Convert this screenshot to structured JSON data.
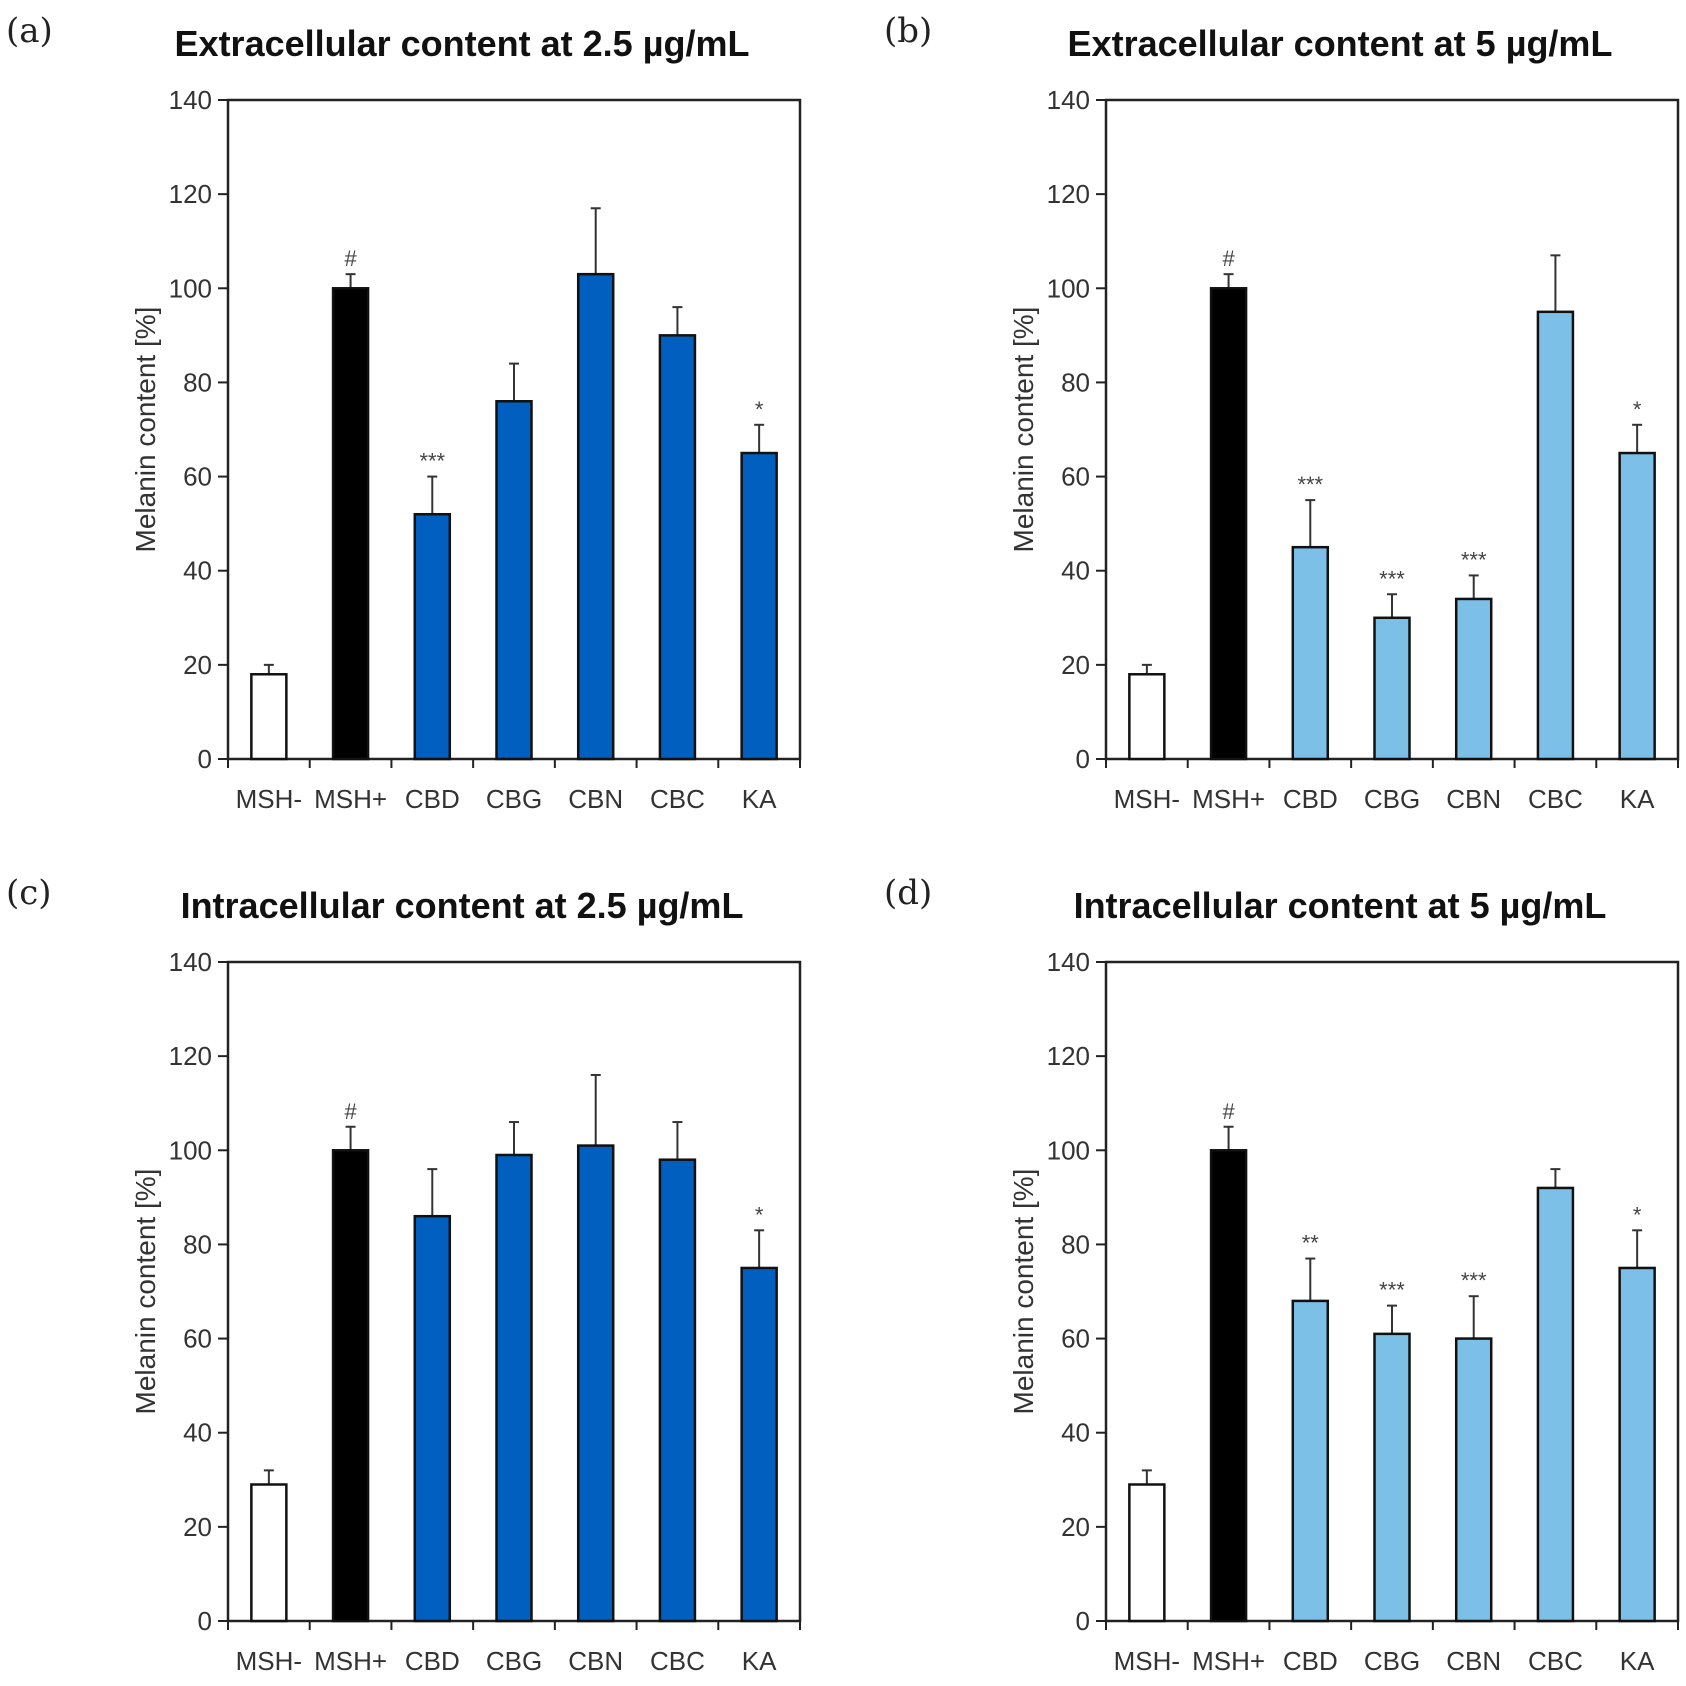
{
  "chart_data": [
    {
      "type": "bar",
      "panel": "(a)",
      "title": "Extracellular content at 2.5 µg/mL",
      "ylabel": "Melanin content [%]",
      "ylim": [
        0,
        140
      ],
      "yticks": [
        0,
        20,
        40,
        60,
        80,
        100,
        120,
        140
      ],
      "categories": [
        "MSH-",
        "MSH+",
        "CBD",
        "CBG",
        "CBN",
        "CBC",
        "KA"
      ],
      "values": [
        18,
        100,
        52,
        76,
        103,
        90,
        65
      ],
      "errors": [
        2,
        3,
        8,
        8,
        14,
        6,
        6
      ],
      "significance": [
        "",
        "#",
        "***",
        "",
        "",
        "",
        "*"
      ],
      "colors": [
        "#ffffff",
        "#000000",
        "#005fbf",
        "#005fbf",
        "#005fbf",
        "#005fbf",
        "#005fbf"
      ]
    },
    {
      "type": "bar",
      "panel": "(b)",
      "title": "Extracellular content at 5 µg/mL",
      "ylabel": "Melanin content [%]",
      "ylim": [
        0,
        140
      ],
      "yticks": [
        0,
        20,
        40,
        60,
        80,
        100,
        120,
        140
      ],
      "categories": [
        "MSH-",
        "MSH+",
        "CBD",
        "CBG",
        "CBN",
        "CBC",
        "KA"
      ],
      "values": [
        18,
        100,
        45,
        30,
        34,
        95,
        65
      ],
      "errors": [
        2,
        3,
        10,
        5,
        5,
        12,
        6
      ],
      "significance": [
        "",
        "#",
        "***",
        "***",
        "***",
        "",
        "*"
      ],
      "colors": [
        "#ffffff",
        "#000000",
        "#7cc0e8",
        "#7cc0e8",
        "#7cc0e8",
        "#7cc0e8",
        "#7cc0e8"
      ]
    },
    {
      "type": "bar",
      "panel": "(c)",
      "title": "Intracellular content at 2.5 µg/mL",
      "ylabel": "Melanin content [%]",
      "ylim": [
        0,
        140
      ],
      "yticks": [
        0,
        20,
        40,
        60,
        80,
        100,
        120,
        140
      ],
      "categories": [
        "MSH-",
        "MSH+",
        "CBD",
        "CBG",
        "CBN",
        "CBC",
        "KA"
      ],
      "values": [
        29,
        100,
        86,
        99,
        101,
        98,
        75
      ],
      "errors": [
        3,
        5,
        10,
        7,
        15,
        8,
        8
      ],
      "significance": [
        "",
        "#",
        "",
        "",
        "",
        "",
        "*"
      ],
      "colors": [
        "#ffffff",
        "#000000",
        "#005fbf",
        "#005fbf",
        "#005fbf",
        "#005fbf",
        "#005fbf"
      ]
    },
    {
      "type": "bar",
      "panel": "(d)",
      "title": "Intracellular content at 5 µg/mL",
      "ylabel": "Melanin content [%]",
      "ylim": [
        0,
        140
      ],
      "yticks": [
        0,
        20,
        40,
        60,
        80,
        100,
        120,
        140
      ],
      "categories": [
        "MSH-",
        "MSH+",
        "CBD",
        "CBG",
        "CBN",
        "CBC",
        "KA"
      ],
      "values": [
        29,
        100,
        68,
        61,
        60,
        92,
        75
      ],
      "errors": [
        3,
        5,
        9,
        6,
        9,
        4,
        8
      ],
      "significance": [
        "",
        "#",
        "**",
        "***",
        "***",
        "",
        "*"
      ],
      "colors": [
        "#ffffff",
        "#000000",
        "#7cc0e8",
        "#7cc0e8",
        "#7cc0e8",
        "#7cc0e8",
        "#7cc0e8"
      ]
    }
  ]
}
